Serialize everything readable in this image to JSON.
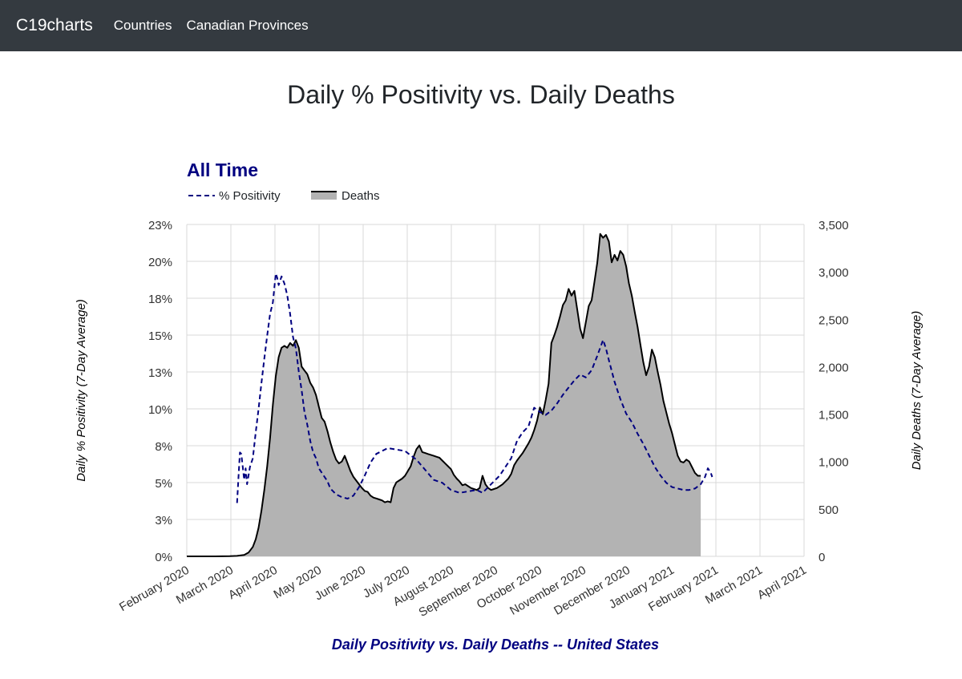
{
  "navbar": {
    "brand": "C19charts",
    "links": [
      "Countries",
      "Canadian Provinces"
    ]
  },
  "page": {
    "title": "Daily % Positivity vs. Daily Deaths"
  },
  "colors": {
    "positivity": "#000080",
    "deaths_line": "#000000",
    "deaths_fill": "#b3b3b3",
    "grid": "#d9d9d9",
    "navbar": "#343a40"
  },
  "chart_data": {
    "type": "line",
    "subtitle": "All Time",
    "title": "Daily Positivity vs. Daily Deaths -- United States",
    "legend": [
      {
        "name": "% Positivity",
        "style": "dashed-line",
        "axis": "left"
      },
      {
        "name": "Deaths",
        "style": "area",
        "axis": "right"
      }
    ],
    "legend_position": "top-left",
    "grid": true,
    "ylabel_left": "Daily % Positivity (7-Day Average)",
    "ylabel_right": "Daily Deaths (7-Day Average)",
    "y_left_lim": [
      0,
      23
    ],
    "y_left_ticks": [
      "0%",
      "3%",
      "5%",
      "8%",
      "10%",
      "13%",
      "15%",
      "18%",
      "20%",
      "23%"
    ],
    "y_right_lim": [
      0,
      3500
    ],
    "y_right_ticks": [
      "0",
      "500",
      "1,000",
      "1,500",
      "2,000",
      "2,500",
      "3,000",
      "3,500"
    ],
    "x_ticks": [
      "February 2020",
      "March 2020",
      "April 2020",
      "May 2020",
      "June 2020",
      "July 2020",
      "August 2020",
      "September 2020",
      "October 2020",
      "November 2020",
      "December 2020",
      "January 2021",
      "February 2021",
      "March 2021",
      "April 2021"
    ],
    "x_range_days": [
      0,
      430
    ],
    "series": [
      {
        "name": "% Positivity",
        "unit": "percent",
        "axis": "left",
        "points": [
          [
            35,
            3.7
          ],
          [
            36,
            5.5
          ],
          [
            37,
            7.2
          ],
          [
            38,
            7.1
          ],
          [
            39,
            6.2
          ],
          [
            40,
            5.3
          ],
          [
            41,
            6.1
          ],
          [
            42,
            5.0
          ],
          [
            43,
            5.6
          ],
          [
            44,
            6.2
          ],
          [
            46,
            6.8
          ],
          [
            48,
            8.6
          ],
          [
            50,
            10.2
          ],
          [
            52,
            12.0
          ],
          [
            54,
            13.7
          ],
          [
            56,
            15.3
          ],
          [
            58,
            16.8
          ],
          [
            60,
            17.6
          ],
          [
            62,
            19.6
          ],
          [
            63,
            19.3
          ],
          [
            64,
            18.8
          ],
          [
            65,
            19.1
          ],
          [
            66,
            19.4
          ],
          [
            68,
            18.9
          ],
          [
            70,
            18.1
          ],
          [
            72,
            16.8
          ],
          [
            74,
            15.2
          ],
          [
            76,
            14.4
          ],
          [
            78,
            12.8
          ],
          [
            80,
            11.5
          ],
          [
            82,
            10.0
          ],
          [
            84,
            9.1
          ],
          [
            86,
            8.0
          ],
          [
            88,
            7.2
          ],
          [
            90,
            6.8
          ],
          [
            92,
            6.1
          ],
          [
            94,
            5.8
          ],
          [
            96,
            5.5
          ],
          [
            98,
            5.2
          ],
          [
            100,
            4.7
          ],
          [
            104,
            4.3
          ],
          [
            108,
            4.1
          ],
          [
            112,
            4.0
          ],
          [
            116,
            4.2
          ],
          [
            120,
            4.8
          ],
          [
            124,
            5.6
          ],
          [
            128,
            6.5
          ],
          [
            132,
            7.1
          ],
          [
            136,
            7.3
          ],
          [
            140,
            7.5
          ],
          [
            146,
            7.4
          ],
          [
            152,
            7.3
          ],
          [
            156,
            7.0
          ],
          [
            160,
            6.7
          ],
          [
            166,
            6.0
          ],
          [
            172,
            5.3
          ],
          [
            178,
            5.1
          ],
          [
            184,
            4.6
          ],
          [
            190,
            4.4
          ],
          [
            196,
            4.5
          ],
          [
            202,
            4.6
          ],
          [
            206,
            4.4
          ],
          [
            210,
            4.8
          ],
          [
            214,
            5.2
          ],
          [
            218,
            5.6
          ],
          [
            222,
            6.2
          ],
          [
            226,
            6.8
          ],
          [
            230,
            8.0
          ],
          [
            234,
            8.6
          ],
          [
            238,
            9.0
          ],
          [
            242,
            10.3
          ],
          [
            246,
            10.0
          ],
          [
            250,
            9.8
          ],
          [
            254,
            10.1
          ],
          [
            258,
            10.6
          ],
          [
            262,
            11.2
          ],
          [
            266,
            11.7
          ],
          [
            270,
            12.2
          ],
          [
            274,
            12.6
          ],
          [
            278,
            12.4
          ],
          [
            282,
            12.9
          ],
          [
            286,
            13.9
          ],
          [
            290,
            15.0
          ],
          [
            292,
            14.4
          ],
          [
            294,
            13.6
          ],
          [
            298,
            12.1
          ],
          [
            302,
            10.9
          ],
          [
            306,
            9.9
          ],
          [
            310,
            9.3
          ],
          [
            314,
            8.5
          ],
          [
            318,
            7.8
          ],
          [
            322,
            7.0
          ],
          [
            326,
            6.2
          ],
          [
            330,
            5.6
          ],
          [
            334,
            5.1
          ],
          [
            338,
            4.8
          ],
          [
            342,
            4.7
          ],
          [
            346,
            4.6
          ],
          [
            350,
            4.6
          ],
          [
            354,
            4.7
          ],
          [
            358,
            5.0
          ],
          [
            361,
            5.5
          ],
          [
            363,
            6.1
          ],
          [
            365,
            5.8
          ],
          [
            366,
            5.5
          ]
        ]
      },
      {
        "name": "Deaths",
        "unit": "deaths per day",
        "axis": "right",
        "points": [
          [
            0,
            0
          ],
          [
            20,
            0
          ],
          [
            30,
            2
          ],
          [
            35,
            5
          ],
          [
            40,
            15
          ],
          [
            43,
            40
          ],
          [
            46,
            100
          ],
          [
            48,
            180
          ],
          [
            50,
            300
          ],
          [
            52,
            480
          ],
          [
            54,
            700
          ],
          [
            56,
            950
          ],
          [
            58,
            1250
          ],
          [
            60,
            1600
          ],
          [
            62,
            1900
          ],
          [
            64,
            2100
          ],
          [
            66,
            2200
          ],
          [
            68,
            2220
          ],
          [
            70,
            2200
          ],
          [
            72,
            2250
          ],
          [
            74,
            2220
          ],
          [
            76,
            2280
          ],
          [
            78,
            2200
          ],
          [
            80,
            2000
          ],
          [
            82,
            1960
          ],
          [
            84,
            1920
          ],
          [
            86,
            1830
          ],
          [
            88,
            1780
          ],
          [
            90,
            1700
          ],
          [
            92,
            1580
          ],
          [
            94,
            1460
          ],
          [
            96,
            1420
          ],
          [
            98,
            1320
          ],
          [
            100,
            1200
          ],
          [
            102,
            1100
          ],
          [
            104,
            1020
          ],
          [
            106,
            980
          ],
          [
            108,
            1000
          ],
          [
            110,
            1060
          ],
          [
            112,
            980
          ],
          [
            114,
            900
          ],
          [
            116,
            840
          ],
          [
            118,
            800
          ],
          [
            120,
            760
          ],
          [
            122,
            720
          ],
          [
            124,
            690
          ],
          [
            126,
            680
          ],
          [
            128,
            640
          ],
          [
            130,
            620
          ],
          [
            132,
            610
          ],
          [
            134,
            600
          ],
          [
            136,
            590
          ],
          [
            138,
            570
          ],
          [
            140,
            580
          ],
          [
            142,
            570
          ],
          [
            144,
            720
          ],
          [
            146,
            780
          ],
          [
            148,
            800
          ],
          [
            150,
            820
          ],
          [
            152,
            850
          ],
          [
            154,
            900
          ],
          [
            156,
            950
          ],
          [
            158,
            1050
          ],
          [
            160,
            1130
          ],
          [
            162,
            1170
          ],
          [
            164,
            1100
          ],
          [
            166,
            1090
          ],
          [
            168,
            1080
          ],
          [
            170,
            1070
          ],
          [
            172,
            1060
          ],
          [
            174,
            1050
          ],
          [
            176,
            1040
          ],
          [
            178,
            1010
          ],
          [
            180,
            980
          ],
          [
            182,
            950
          ],
          [
            184,
            920
          ],
          [
            186,
            860
          ],
          [
            188,
            820
          ],
          [
            190,
            790
          ],
          [
            192,
            750
          ],
          [
            194,
            760
          ],
          [
            196,
            740
          ],
          [
            198,
            720
          ],
          [
            200,
            710
          ],
          [
            202,
            700
          ],
          [
            204,
            720
          ],
          [
            206,
            850
          ],
          [
            208,
            760
          ],
          [
            210,
            720
          ],
          [
            212,
            700
          ],
          [
            214,
            710
          ],
          [
            216,
            720
          ],
          [
            218,
            740
          ],
          [
            220,
            760
          ],
          [
            222,
            790
          ],
          [
            224,
            820
          ],
          [
            226,
            870
          ],
          [
            228,
            960
          ],
          [
            230,
            1010
          ],
          [
            232,
            1050
          ],
          [
            234,
            1090
          ],
          [
            236,
            1140
          ],
          [
            238,
            1190
          ],
          [
            240,
            1250
          ],
          [
            242,
            1330
          ],
          [
            244,
            1430
          ],
          [
            246,
            1570
          ],
          [
            248,
            1500
          ],
          [
            250,
            1650
          ],
          [
            252,
            1820
          ],
          [
            254,
            2250
          ],
          [
            256,
            2330
          ],
          [
            258,
            2420
          ],
          [
            260,
            2530
          ],
          [
            262,
            2650
          ],
          [
            264,
            2700
          ],
          [
            266,
            2820
          ],
          [
            268,
            2750
          ],
          [
            270,
            2800
          ],
          [
            272,
            2600
          ],
          [
            274,
            2400
          ],
          [
            276,
            2300
          ],
          [
            278,
            2470
          ],
          [
            280,
            2640
          ],
          [
            282,
            2700
          ],
          [
            284,
            2900
          ],
          [
            286,
            3100
          ],
          [
            288,
            3400
          ],
          [
            290,
            3360
          ],
          [
            292,
            3390
          ],
          [
            294,
            3320
          ],
          [
            296,
            3100
          ],
          [
            298,
            3180
          ],
          [
            300,
            3120
          ],
          [
            302,
            3220
          ],
          [
            304,
            3180
          ],
          [
            306,
            3060
          ],
          [
            308,
            2880
          ],
          [
            310,
            2750
          ],
          [
            312,
            2580
          ],
          [
            314,
            2420
          ],
          [
            316,
            2230
          ],
          [
            318,
            2050
          ],
          [
            320,
            1910
          ],
          [
            322,
            2000
          ],
          [
            324,
            2180
          ],
          [
            326,
            2100
          ],
          [
            328,
            1950
          ],
          [
            330,
            1810
          ],
          [
            332,
            1640
          ],
          [
            334,
            1520
          ],
          [
            336,
            1400
          ],
          [
            338,
            1300
          ],
          [
            340,
            1180
          ],
          [
            342,
            1060
          ],
          [
            344,
            1000
          ],
          [
            346,
            990
          ],
          [
            348,
            1020
          ],
          [
            350,
            1000
          ],
          [
            352,
            940
          ],
          [
            354,
            880
          ],
          [
            356,
            850
          ],
          [
            358,
            850
          ]
        ]
      }
    ]
  }
}
